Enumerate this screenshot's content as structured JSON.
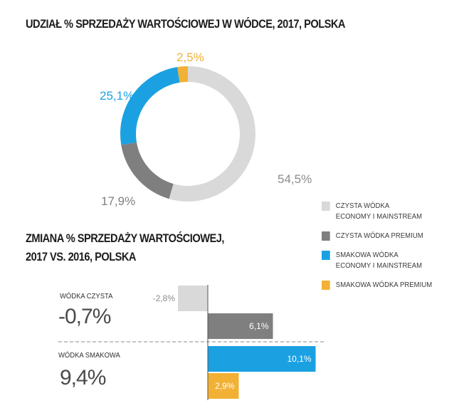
{
  "chart_data": [
    {
      "type": "pie",
      "title": "UDZIAŁ % SPRZEDAŻY WARTOŚCIOWEJ W WÓDCE, 2017, POLSKA",
      "categories": [
        "CZYSTA WÓDKA ECONOMY I MAINSTREAM",
        "CZYSTA WÓDKA PREMIUM",
        "SMAKOWA WÓDKA ECONOMY I MAINSTREAM",
        "SMAKOWA WÓDKA PREMIUM"
      ],
      "values": [
        54.5,
        17.9,
        25.1,
        2.5
      ],
      "labels": [
        "54,5%",
        "17,9%",
        "25,1%",
        "2,5%"
      ],
      "colors": [
        "#d9d9d9",
        "#7f7f7f",
        "#1ba1e2",
        "#f2b134"
      ],
      "label_colors": [
        "#8c8c8c",
        "#7f7f7f",
        "#1ba1e2",
        "#f2b134"
      ],
      "legend": [
        {
          "text": "CZYSTA WÓDKA\nECONOMY I MAINSTREAM",
          "color": "#d9d9d9"
        },
        {
          "text": "CZYSTA WÓDKA PREMIUM",
          "color": "#7f7f7f"
        },
        {
          "text": "SMAKOWA WÓDKA\nECONOMY I MAINSTREAM",
          "color": "#1ba1e2"
        },
        {
          "text": "SMAKOWA WÓDKA PREMIUM",
          "color": "#f2b134"
        }
      ]
    },
    {
      "type": "bar",
      "title_lines": [
        "ZMIANA % SPRZEDAŻY WARTOŚCIOWEJ,",
        "2017 VS. 2016, POLSKA"
      ],
      "categories": [
        "CZYSTA WÓDKA ECONOMY I MAINSTREAM",
        "CZYSTA WÓDKA PREMIUM",
        "SMAKOWA WÓDKA ECONOMY I MAINSTREAM",
        "SMAKOWA WÓDKA PREMIUM"
      ],
      "values": [
        -2.8,
        6.1,
        10.1,
        2.9
      ],
      "labels": [
        "-2,8%",
        "6,1%",
        "10,1%",
        "2,9%"
      ],
      "colors": [
        "#d9d9d9",
        "#7f7f7f",
        "#1ba1e2",
        "#f2b134"
      ],
      "groups": [
        {
          "name": "WÓDKA CZYSTA",
          "value": "-0,7%"
        },
        {
          "name": "WÓDKA SMAKOWA",
          "value": "9,4%"
        }
      ]
    }
  ]
}
